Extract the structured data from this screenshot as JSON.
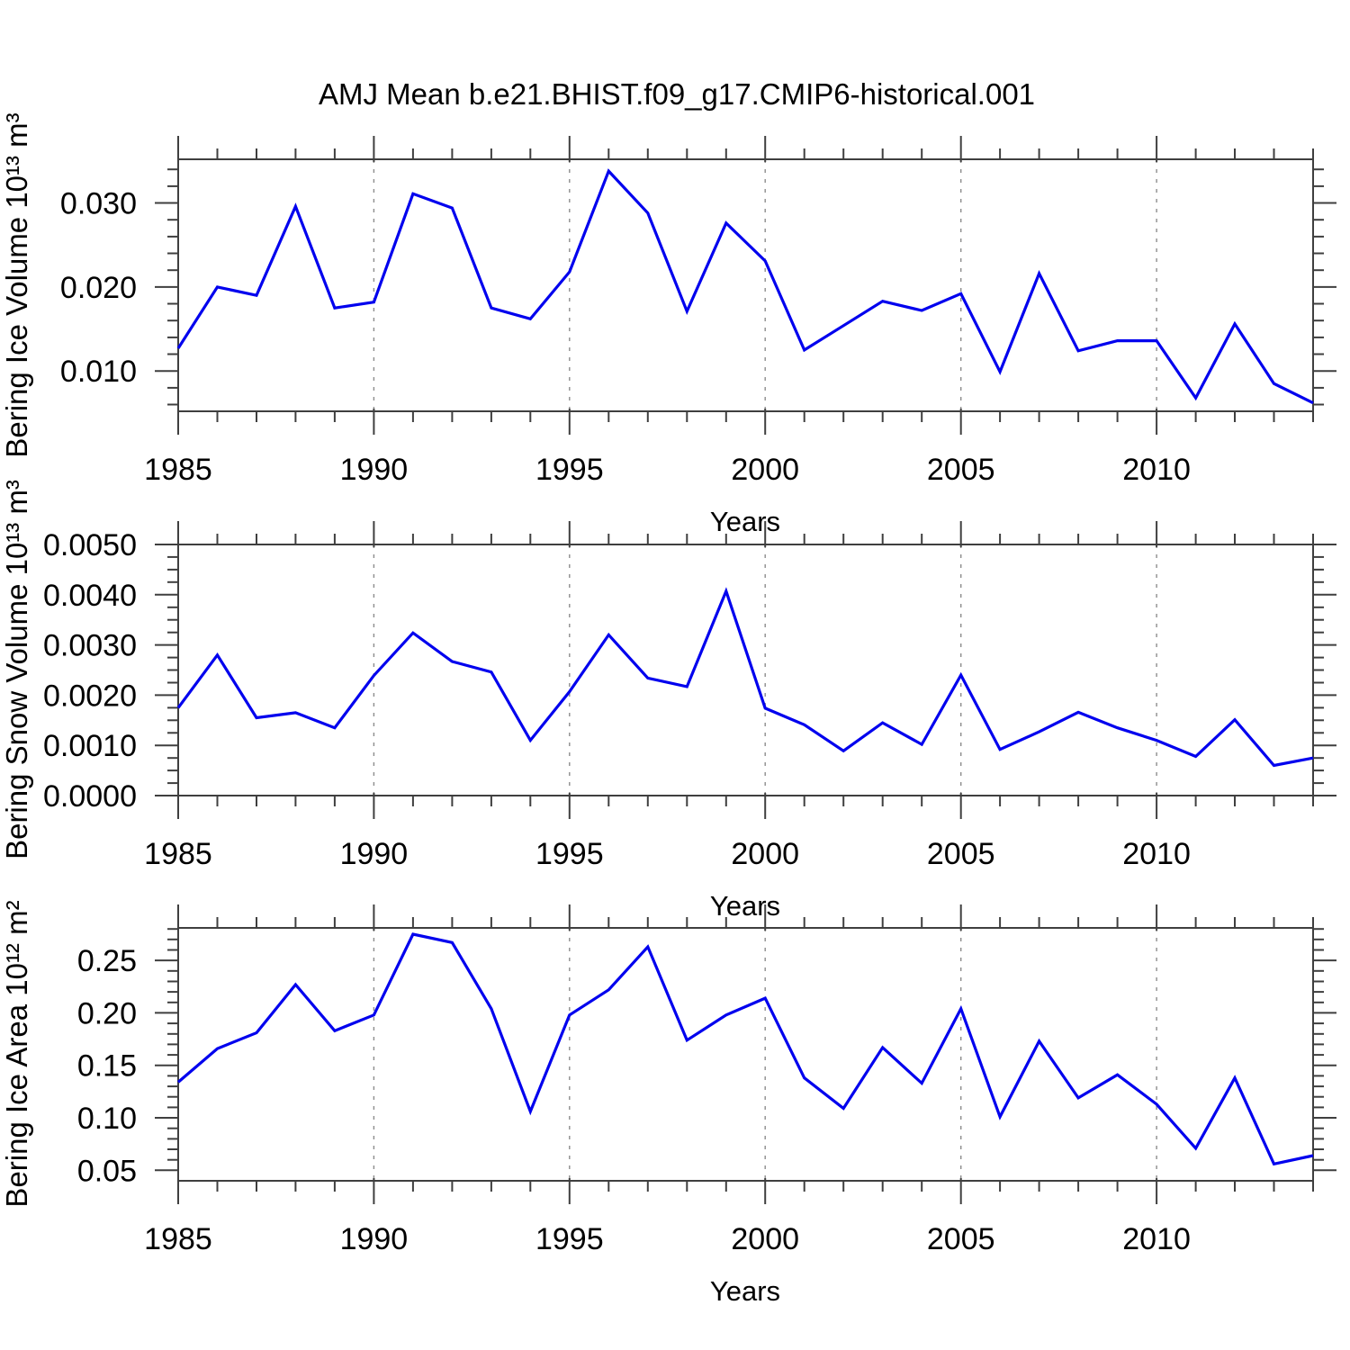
{
  "title": "AMJ Mean b.e21.BHIST.f09_g17.CMIP6-historical.001",
  "x_axis": {
    "label": "Years",
    "range": [
      1985,
      2014
    ],
    "major_ticks": [
      1985,
      1990,
      1995,
      2000,
      2005,
      2010
    ],
    "minor_tick_step": 1,
    "gridline_years": [
      1990,
      1995,
      2000,
      2005,
      2010
    ]
  },
  "colors": {
    "line": "#0000EE",
    "grid": "#8c8c8c",
    "axis": "#3f3f3f",
    "text": "#000000",
    "background": "#ffffff"
  },
  "chart_data": [
    {
      "type": "line",
      "name": "bering-ice-volume",
      "ylabel": "Bering Ice Volume 10¹³ m³",
      "xlabel": "Years",
      "ylim": [
        0.0052,
        0.0352
      ],
      "y_major_ticks": [
        0.01,
        0.02,
        0.03
      ],
      "y_tick_labels": [
        "0.010",
        "0.020",
        "0.030"
      ],
      "y_minor_step": 0.002,
      "grid": "vertical-dashed",
      "x": [
        1985,
        1986,
        1987,
        1988,
        1989,
        1990,
        1991,
        1992,
        1993,
        1994,
        1995,
        1996,
        1997,
        1998,
        1999,
        2000,
        2001,
        2002,
        2003,
        2004,
        2005,
        2006,
        2007,
        2008,
        2009,
        2010,
        2011,
        2012,
        2013,
        2014
      ],
      "values": [
        0.0127,
        0.02,
        0.019,
        0.0296,
        0.0175,
        0.0182,
        0.0311,
        0.0294,
        0.0175,
        0.0162,
        0.0218,
        0.0338,
        0.0288,
        0.0171,
        0.0276,
        0.0231,
        0.0125,
        0.0154,
        0.0183,
        0.0172,
        0.0192,
        0.0099,
        0.0216,
        0.0124,
        0.0136,
        0.0136,
        0.0068,
        0.0156,
        0.0085,
        0.0062
      ]
    },
    {
      "type": "line",
      "name": "bering-snow-volume",
      "ylabel": "Bering Snow Volume 10¹³ m³",
      "xlabel": "Years",
      "ylim": [
        0.0,
        0.005
      ],
      "y_major_ticks": [
        0.0,
        0.001,
        0.002,
        0.003,
        0.004,
        0.005
      ],
      "y_tick_labels": [
        "0.0000",
        "0.0010",
        "0.0020",
        "0.0030",
        "0.0040",
        "0.0050"
      ],
      "y_minor_step": 0.00025,
      "grid": "vertical-dashed",
      "x": [
        1985,
        1986,
        1987,
        1988,
        1989,
        1990,
        1991,
        1992,
        1993,
        1994,
        1995,
        1996,
        1997,
        1998,
        1999,
        2000,
        2001,
        2002,
        2003,
        2004,
        2005,
        2006,
        2007,
        2008,
        2009,
        2010,
        2011,
        2012,
        2013,
        2014
      ],
      "values": [
        0.00175,
        0.0028,
        0.00155,
        0.00165,
        0.00135,
        0.00239,
        0.00324,
        0.00267,
        0.00246,
        0.0011,
        0.00207,
        0.0032,
        0.00234,
        0.00217,
        0.00407,
        0.00174,
        0.00141,
        0.00089,
        0.00145,
        0.00102,
        0.0024,
        0.00092,
        0.00127,
        0.00166,
        0.00135,
        0.0011,
        0.00078,
        0.00151,
        0.0006,
        0.00075
      ]
    },
    {
      "type": "line",
      "name": "bering-ice-area",
      "ylabel": "Bering Ice Area 10¹² m²",
      "xlabel": "Years",
      "ylim": [
        0.04,
        0.281
      ],
      "y_major_ticks": [
        0.05,
        0.1,
        0.15,
        0.2,
        0.25
      ],
      "y_tick_labels": [
        "0.05",
        "0.10",
        "0.15",
        "0.20",
        "0.25"
      ],
      "y_minor_step": 0.01,
      "grid": "vertical-dashed",
      "x": [
        1985,
        1986,
        1987,
        1988,
        1989,
        1990,
        1991,
        1992,
        1993,
        1994,
        1995,
        1996,
        1997,
        1998,
        1999,
        2000,
        2001,
        2002,
        2003,
        2004,
        2005,
        2006,
        2007,
        2008,
        2009,
        2010,
        2011,
        2012,
        2013,
        2014
      ],
      "values": [
        0.134,
        0.166,
        0.181,
        0.227,
        0.183,
        0.198,
        0.275,
        0.267,
        0.204,
        0.106,
        0.198,
        0.222,
        0.263,
        0.174,
        0.198,
        0.214,
        0.138,
        0.109,
        0.167,
        0.133,
        0.204,
        0.101,
        0.173,
        0.119,
        0.141,
        0.113,
        0.071,
        0.138,
        0.056,
        0.064
      ]
    }
  ]
}
